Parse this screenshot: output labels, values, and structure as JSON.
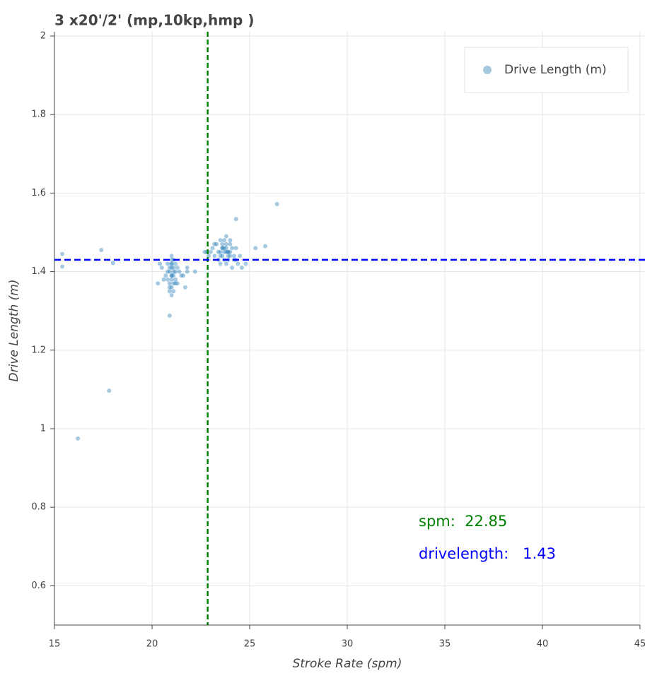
{
  "chart_data": {
    "type": "scatter",
    "title": "3 x20'/2' (mp,10kp,hmp )",
    "x_label": "Stroke Rate (spm)",
    "y_label": "Drive Length (m)",
    "series": [
      {
        "name": "Drive Length (m)",
        "color": "#1f77b4",
        "x": [
          20.9,
          21.0,
          21.1,
          21.2,
          20.8,
          21.0,
          21.1,
          20.9,
          21.3,
          21.0,
          20.7,
          21.2,
          21.0,
          20.9,
          21.1,
          21.4,
          20.6,
          21.0,
          21.2,
          20.8,
          21.0,
          21.1,
          20.9,
          21.5,
          20.5,
          21.0,
          21.3,
          21.1,
          20.8,
          21.0,
          21.2,
          21.6,
          20.4,
          21.0,
          20.9,
          21.1,
          21.8,
          20.3,
          21.7,
          21.0,
          23.5,
          23.8,
          24.0,
          23.6,
          23.9,
          23.2,
          23.7,
          24.1,
          23.4,
          23.8,
          23.0,
          24.2,
          23.6,
          23.9,
          23.3,
          24.0,
          23.5,
          23.7,
          22.9,
          24.3,
          23.8,
          23.6,
          24.4,
          23.1,
          23.9,
          24.0,
          23.4,
          23.7,
          24.5,
          22.8,
          23.5,
          24.1,
          23.6,
          23.8,
          24.6,
          23.2,
          24.0,
          23.9,
          23.7,
          24.2,
          24.8,
          22.7,
          23.5,
          24.3,
          23.8,
          15.4,
          15.4,
          17.4,
          18.0,
          17.8,
          16.2,
          20.9,
          26.4,
          25.8,
          25.3,
          24.3,
          22.2,
          21.8
        ],
        "values": [
          1.4,
          1.41,
          1.39,
          1.42,
          1.38,
          1.43,
          1.4,
          1.37,
          1.41,
          1.36,
          1.39,
          1.38,
          1.42,
          1.41,
          1.35,
          1.4,
          1.38,
          1.44,
          1.37,
          1.42,
          1.39,
          1.41,
          1.36,
          1.39,
          1.41,
          1.34,
          1.37,
          1.43,
          1.4,
          1.38,
          1.4,
          1.39,
          1.42,
          1.42,
          1.35,
          1.37,
          1.41,
          1.37,
          1.36,
          1.39,
          1.45,
          1.46,
          1.44,
          1.47,
          1.45,
          1.44,
          1.48,
          1.46,
          1.43,
          1.47,
          1.45,
          1.44,
          1.46,
          1.43,
          1.47,
          1.48,
          1.42,
          1.45,
          1.44,
          1.43,
          1.49,
          1.44,
          1.42,
          1.46,
          1.45,
          1.47,
          1.45,
          1.43,
          1.44,
          1.45,
          1.48,
          1.41,
          1.46,
          1.42,
          1.41,
          1.47,
          1.45,
          1.44,
          1.46,
          1.43,
          1.42,
          1.45,
          1.44,
          1.46,
          1.45,
          1.445,
          1.413,
          1.455,
          1.422,
          1.097,
          0.975,
          1.288,
          1.572,
          1.465,
          1.46,
          1.534,
          1.4,
          1.4
        ]
      }
    ],
    "xlim": [
      15,
      45
    ],
    "ylim": [
      0.5,
      2
    ],
    "xticks": [
      15,
      20,
      25,
      30,
      35,
      40,
      45
    ],
    "yticks": [
      0.6,
      0.8,
      1,
      1.2,
      1.4,
      1.6,
      1.8,
      2
    ],
    "grid": true,
    "legend": "top-right",
    "vline": {
      "value": 22.85,
      "label": "spm:  22.85",
      "color": "green"
    },
    "hline": {
      "value": 1.43,
      "label": "drivelength:   1.43",
      "color": "blue"
    }
  }
}
